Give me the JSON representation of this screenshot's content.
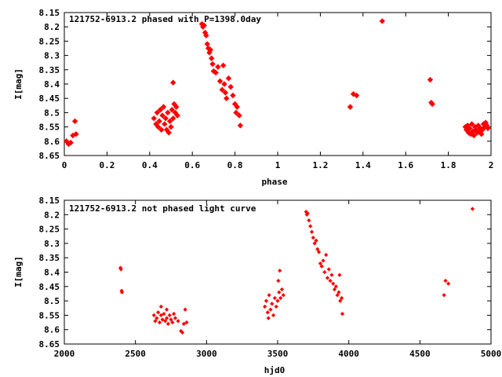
{
  "chart_data": [
    {
      "type": "scatter",
      "title": "121752-6913.2 phased with P=1398.0day",
      "xlabel": "phase",
      "ylabel": "I[mag]",
      "xlim": [
        0,
        2
      ],
      "ylim": [
        8.65,
        8.15
      ],
      "y_inverted": true,
      "grid": false,
      "legend": "none",
      "marker_color": "#ff0000",
      "xticks": [
        "0",
        "0.2",
        "0.4",
        "0.6",
        "0.8",
        "1",
        "1.2",
        "1.4",
        "1.6",
        "1.8",
        "2"
      ],
      "yticks": [
        "8.15",
        "8.2",
        "8.25",
        "8.3",
        "8.35",
        "8.4",
        "8.45",
        "8.5",
        "8.55",
        "8.6",
        "8.65"
      ],
      "series": [
        {
          "points": [
            [
              0.01,
              8.6
            ],
            [
              0.02,
              8.61
            ],
            [
              0.03,
              8.605
            ],
            [
              0.04,
              8.58
            ],
            [
              0.05,
              8.53
            ],
            [
              0.055,
              8.575
            ],
            [
              0.42,
              8.52
            ],
            [
              0.43,
              8.54
            ],
            [
              0.435,
              8.5
            ],
            [
              0.44,
              8.55
            ],
            [
              0.445,
              8.53
            ],
            [
              0.45,
              8.49
            ],
            [
              0.455,
              8.56
            ],
            [
              0.46,
              8.51
            ],
            [
              0.465,
              8.48
            ],
            [
              0.47,
              8.54
            ],
            [
              0.475,
              8.52
            ],
            [
              0.48,
              8.56
            ],
            [
              0.485,
              8.5
            ],
            [
              0.49,
              8.57
            ],
            [
              0.495,
              8.53
            ],
            [
              0.5,
              8.55
            ],
            [
              0.505,
              8.49
            ],
            [
              0.51,
              8.52
            ],
            [
              0.515,
              8.47
            ],
            [
              0.52,
              8.5
            ],
            [
              0.525,
              8.48
            ],
            [
              0.53,
              8.51
            ],
            [
              0.51,
              8.395
            ],
            [
              0.645,
              8.19
            ],
            [
              0.65,
              8.2
            ],
            [
              0.655,
              8.195
            ],
            [
              0.66,
              8.22
            ],
            [
              0.665,
              8.23
            ],
            [
              0.67,
              8.26
            ],
            [
              0.675,
              8.275
            ],
            [
              0.68,
              8.29
            ],
            [
              0.685,
              8.28
            ],
            [
              0.69,
              8.31
            ],
            [
              0.695,
              8.33
            ],
            [
              0.7,
              8.355
            ],
            [
              0.71,
              8.36
            ],
            [
              0.72,
              8.34
            ],
            [
              0.73,
              8.39
            ],
            [
              0.74,
              8.42
            ],
            [
              0.75,
              8.4
            ],
            [
              0.755,
              8.43
            ],
            [
              0.76,
              8.45
            ],
            [
              0.77,
              8.38
            ],
            [
              0.78,
              8.41
            ],
            [
              0.79,
              8.44
            ],
            [
              0.8,
              8.47
            ],
            [
              0.805,
              8.5
            ],
            [
              0.81,
              8.48
            ],
            [
              0.82,
              8.51
            ],
            [
              0.825,
              8.545
            ],
            [
              0.745,
              8.335
            ],
            [
              1.34,
              8.48
            ],
            [
              1.355,
              8.435
            ],
            [
              1.37,
              8.44
            ],
            [
              1.49,
              8.18
            ],
            [
              1.715,
              8.385
            ],
            [
              1.72,
              8.465
            ],
            [
              1.725,
              8.47
            ],
            [
              1.88,
              8.55
            ],
            [
              1.885,
              8.56
            ],
            [
              1.89,
              8.545
            ],
            [
              1.895,
              8.57
            ],
            [
              1.9,
              8.555
            ],
            [
              1.905,
              8.575
            ],
            [
              1.91,
              8.54
            ],
            [
              1.915,
              8.565
            ],
            [
              1.92,
              8.58
            ],
            [
              1.925,
              8.55
            ],
            [
              1.93,
              8.56
            ],
            [
              1.935,
              8.57
            ],
            [
              1.94,
              8.545
            ],
            [
              1.945,
              8.565
            ],
            [
              1.95,
              8.555
            ],
            [
              1.955,
              8.575
            ],
            [
              1.96,
              8.56
            ],
            [
              1.965,
              8.54
            ],
            [
              1.97,
              8.55
            ],
            [
              1.975,
              8.535
            ],
            [
              1.98,
              8.545
            ],
            [
              1.985,
              8.555
            ]
          ]
        }
      ]
    },
    {
      "type": "scatter",
      "title": "121752-6913.2 not phased light curve",
      "xlabel": "hjd0",
      "ylabel": "I[mag]",
      "xlim": [
        2000,
        5000
      ],
      "ylim": [
        8.65,
        8.15
      ],
      "y_inverted": true,
      "grid": false,
      "legend": "none",
      "marker_color": "#ff0000",
      "xticks": [
        "2000",
        "2500",
        "3000",
        "3500",
        "4000",
        "4500",
        "5000"
      ],
      "yticks": [
        "8.15",
        "8.2",
        "8.25",
        "8.3",
        "8.35",
        "8.4",
        "8.45",
        "8.5",
        "8.55",
        "8.6",
        "8.65"
      ],
      "series": [
        {
          "points": [
            [
              2395,
              8.385
            ],
            [
              2398,
              8.39
            ],
            [
              2403,
              8.465
            ],
            [
              2406,
              8.47
            ],
            [
              2630,
              8.55
            ],
            [
              2640,
              8.57
            ],
            [
              2650,
              8.56
            ],
            [
              2660,
              8.54
            ],
            [
              2670,
              8.575
            ],
            [
              2680,
              8.55
            ],
            [
              2690,
              8.565
            ],
            [
              2700,
              8.545
            ],
            [
              2710,
              8.57
            ],
            [
              2720,
              8.56
            ],
            [
              2730,
              8.58
            ],
            [
              2740,
              8.55
            ],
            [
              2750,
              8.565
            ],
            [
              2760,
              8.575
            ],
            [
              2770,
              8.545
            ],
            [
              2780,
              8.56
            ],
            [
              2680,
              8.52
            ],
            [
              2720,
              8.53
            ],
            [
              2800,
              8.57
            ],
            [
              2820,
              8.605
            ],
            [
              2830,
              8.61
            ],
            [
              2840,
              8.58
            ],
            [
              2850,
              8.53
            ],
            [
              2860,
              8.575
            ],
            [
              3410,
              8.52
            ],
            [
              3420,
              8.5
            ],
            [
              3430,
              8.54
            ],
            [
              3440,
              8.48
            ],
            [
              3450,
              8.53
            ],
            [
              3460,
              8.51
            ],
            [
              3470,
              8.55
            ],
            [
              3480,
              8.49
            ],
            [
              3490,
              8.52
            ],
            [
              3500,
              8.5
            ],
            [
              3510,
              8.47
            ],
            [
              3520,
              8.49
            ],
            [
              3530,
              8.46
            ],
            [
              3540,
              8.48
            ],
            [
              3505,
              8.43
            ],
            [
              3515,
              8.395
            ],
            [
              3435,
              8.56
            ],
            [
              3700,
              8.19
            ],
            [
              3705,
              8.2
            ],
            [
              3710,
              8.195
            ],
            [
              3720,
              8.22
            ],
            [
              3730,
              8.24
            ],
            [
              3740,
              8.26
            ],
            [
              3750,
              8.28
            ],
            [
              3760,
              8.3
            ],
            [
              3770,
              8.29
            ],
            [
              3780,
              8.32
            ],
            [
              3790,
              8.33
            ],
            [
              3800,
              8.37
            ],
            [
              3810,
              8.38
            ],
            [
              3820,
              8.36
            ],
            [
              3830,
              8.4
            ],
            [
              3840,
              8.34
            ],
            [
              3850,
              8.42
            ],
            [
              3860,
              8.39
            ],
            [
              3870,
              8.43
            ],
            [
              3880,
              8.41
            ],
            [
              3890,
              8.44
            ],
            [
              3900,
              8.46
            ],
            [
              3910,
              8.45
            ],
            [
              3920,
              8.48
            ],
            [
              3930,
              8.47
            ],
            [
              3940,
              8.5
            ],
            [
              3950,
              8.49
            ],
            [
              3955,
              8.545
            ],
            [
              3935,
              8.41
            ],
            [
              4670,
              8.48
            ],
            [
              4680,
              8.43
            ],
            [
              4700,
              8.44
            ],
            [
              4870,
              8.18
            ]
          ]
        }
      ]
    }
  ]
}
